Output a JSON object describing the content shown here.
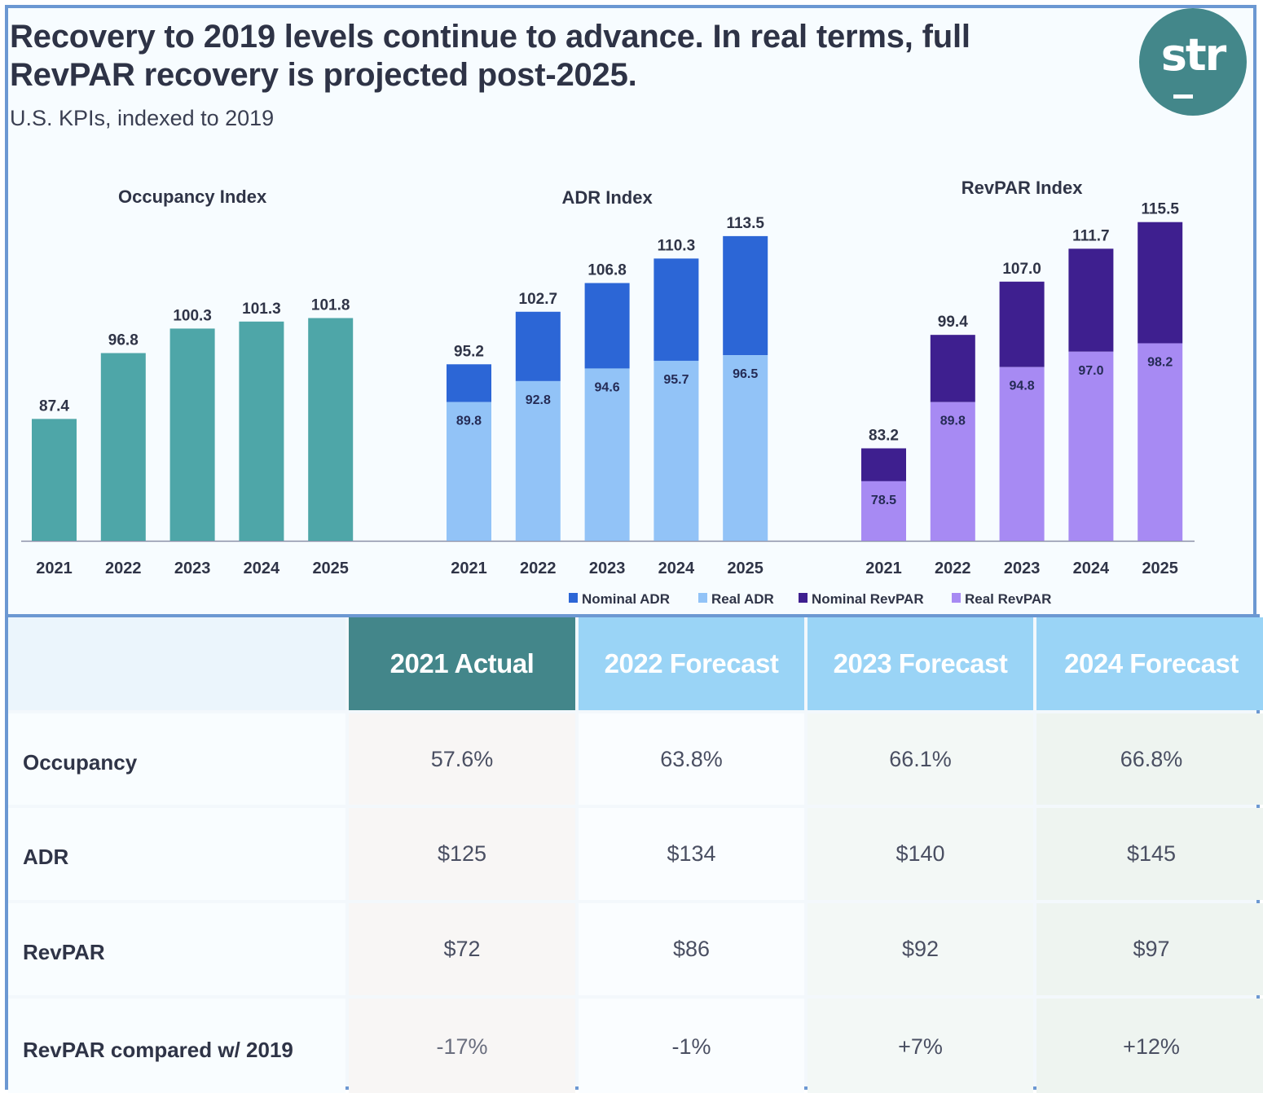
{
  "header": {
    "title": "Recovery to 2019 levels continue to advance. In real terms, full RevPAR recovery is projected post-2025.",
    "subtitle": "U.S. KPIs, indexed to 2019",
    "logo_text": "str"
  },
  "colors": {
    "occupancy": "#4ea6a8",
    "nominal_adr": "#2c66d6",
    "real_adr": "#92c3f7",
    "nominal_revpar": "#3e1f8f",
    "real_revpar": "#a78af3",
    "header_actual": "#43868a",
    "header_forecast": "#9ad4f6"
  },
  "chart_data": [
    {
      "type": "bar",
      "title": "Occupancy Index",
      "categories": [
        "2021",
        "2022",
        "2023",
        "2024",
        "2025"
      ],
      "values": [
        87.4,
        96.8,
        100.3,
        101.3,
        101.8
      ],
      "value_labels": [
        "87.4",
        "96.8",
        "100.3",
        "101.3",
        "101.8"
      ],
      "ylim": [
        70,
        120
      ],
      "grid": false,
      "xlabel": "",
      "ylabel": ""
    },
    {
      "type": "bar",
      "title": "ADR Index",
      "categories": [
        "2021",
        "2022",
        "2023",
        "2024",
        "2025"
      ],
      "series": [
        {
          "name": "Nominal ADR",
          "values": [
            95.2,
            102.7,
            106.8,
            110.3,
            113.5
          ],
          "labels": [
            "95.2",
            "102.7",
            "106.8",
            "110.3",
            "113.5"
          ]
        },
        {
          "name": "Real ADR",
          "values": [
            89.8,
            92.8,
            94.6,
            95.7,
            96.5
          ],
          "labels": [
            "89.8",
            "92.8",
            "94.6",
            "95.7",
            "96.5"
          ]
        }
      ],
      "ylim": [
        70,
        120
      ],
      "grid": false,
      "xlabel": "",
      "ylabel": ""
    },
    {
      "type": "bar",
      "title": "RevPAR Index",
      "categories": [
        "2021",
        "2022",
        "2023",
        "2024",
        "2025"
      ],
      "series": [
        {
          "name": "Nominal RevPAR",
          "values": [
            83.2,
            99.4,
            107.0,
            111.7,
            115.5
          ],
          "labels": [
            "83.2",
            "99.4",
            "107.0",
            "111.7",
            "115.5"
          ]
        },
        {
          "name": "Real RevPAR",
          "values": [
            78.5,
            89.8,
            94.8,
            97.0,
            98.2
          ],
          "labels": [
            "78.5",
            "89.8",
            "94.8",
            "97.0",
            "98.2"
          ]
        }
      ],
      "ylim": [
        70,
        120
      ],
      "grid": false,
      "xlabel": "",
      "ylabel": ""
    }
  ],
  "legend": {
    "placement": "bottom-right",
    "items": [
      {
        "label": "Nominal ADR",
        "color": "#2c66d6"
      },
      {
        "label": "Real ADR",
        "color": "#92c3f7"
      },
      {
        "label": "Nominal RevPAR",
        "color": "#3e1f8f"
      },
      {
        "label": "Real RevPAR",
        "color": "#a78af3"
      }
    ]
  },
  "table": {
    "columns": [
      "2021 Actual",
      "2022 Forecast",
      "2023 Forecast",
      "2024 Forecast"
    ],
    "rows": [
      {
        "label": "Occupancy",
        "values": [
          "57.6%",
          "63.8%",
          "66.1%",
          "66.8%"
        ]
      },
      {
        "label": "ADR",
        "values": [
          "$125",
          "$134",
          "$140",
          "$145"
        ]
      },
      {
        "label": "RevPAR",
        "values": [
          "$72",
          "$86",
          "$92",
          "$97"
        ]
      },
      {
        "label": "RevPAR compared w/ 2019",
        "values": [
          "-17%",
          "-1%",
          "+7%",
          "+12%"
        ]
      }
    ]
  }
}
